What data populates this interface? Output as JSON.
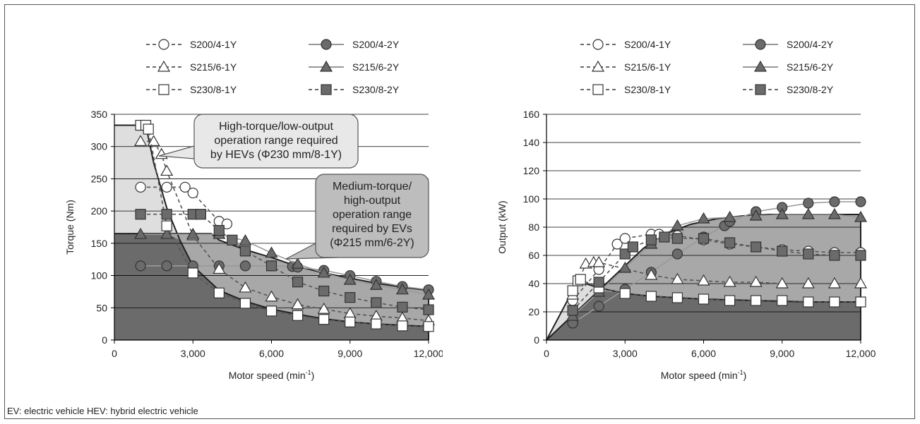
{
  "footnote": "EV: electric vehicle   HEV: hybrid electric vehicle",
  "colors": {
    "dark": "#6b6b6b",
    "medium": "#a8a8a8",
    "light": "#dedede",
    "grid": "#000000",
    "callout": "#e8e8e8",
    "callout2": "#bdbdbd"
  },
  "chart_data": [
    {
      "type": "line",
      "xlabel": "Motor speed (min",
      "xlabel_sup": "-1",
      "xlabel_end": ")",
      "ylabel": "Torque (Nm)",
      "xlim": [
        0,
        12000
      ],
      "ylim": [
        0,
        350
      ],
      "xticks": [
        0,
        3000,
        6000,
        9000,
        12000
      ],
      "xtick_labels": [
        "0",
        "3,000",
        "6,000",
        "9,000",
        "12,000"
      ],
      "yticks": [
        0,
        50,
        100,
        150,
        200,
        250,
        300,
        350
      ],
      "ytick_labels": [
        "0",
        "50",
        "100",
        "150",
        "200",
        "250",
        "300",
        "350"
      ],
      "grid": "horizontal",
      "legend": [
        "S200/4-1Y",
        "S200/4-2Y",
        "S215/6-1Y",
        "S215/6-2Y",
        "S230/8-1Y",
        "S230/8-2Y"
      ],
      "callouts": [
        {
          "lines": [
            "High-torque/low-output",
            "operation range required",
            "by HEVs (Φ230 mm/8-1Y)"
          ]
        },
        {
          "lines": [
            "Medium-torque/",
            "high-output",
            "operation range",
            "required by EVs",
            "(Φ215 mm/6-2Y)"
          ]
        }
      ],
      "regions": [
        {
          "name": "HEV operation range",
          "x": [
            0,
            1200,
            1500,
            2000,
            2500,
            3000,
            4000,
            5000,
            6000,
            7000,
            8000,
            9000,
            10000,
            11000,
            12000
          ],
          "y": [
            333,
            333,
            275,
            205,
            155,
            115,
            77,
            60,
            48,
            40,
            33,
            28,
            25,
            23,
            21
          ]
        },
        {
          "name": "EV operation range",
          "x": [
            0,
            3700,
            4000,
            5000,
            6000,
            7000,
            8000,
            9000,
            10000,
            11000,
            12000
          ],
          "y": [
            165,
            165,
            155,
            140,
            128,
            114,
            104,
            96,
            88,
            82,
            77
          ]
        }
      ],
      "series": [
        {
          "name": "S200/4-1Y",
          "marker": "circle",
          "fill": "white",
          "dash": true,
          "x": [
            1000,
            2000,
            2700,
            3000,
            4000,
            4300
          ],
          "y": [
            237,
            237,
            237,
            228,
            184,
            180
          ]
        },
        {
          "name": "S200/4-2Y",
          "marker": "circle",
          "fill": "dark",
          "dash": false,
          "x": [
            1000,
            2000,
            3000,
            4000,
            5000,
            6000,
            6800,
            7000,
            8000,
            9000,
            10000,
            11000,
            12000
          ],
          "y": [
            115,
            115,
            115,
            115,
            115,
            115,
            114,
            113,
            108,
            100,
            91,
            83,
            78
          ]
        },
        {
          "name": "S215/6-1Y",
          "marker": "triangle",
          "fill": "white",
          "dash": true,
          "x": [
            1000,
            1500,
            1800,
            2000,
            3000,
            4000,
            5000,
            6000,
            7000,
            8000,
            9000,
            10000,
            11000,
            12000
          ],
          "y": [
            308,
            308,
            288,
            262,
            162,
            110,
            81,
            67,
            55,
            48,
            41,
            37,
            34,
            30
          ]
        },
        {
          "name": "S215/6-2Y",
          "marker": "triangle",
          "fill": "dark",
          "dash": false,
          "x": [
            1000,
            2000,
            3000,
            4000,
            5000,
            6000,
            7000,
            8000,
            9000,
            10000,
            11000,
            12000
          ],
          "y": [
            164,
            164,
            164,
            164,
            154,
            135,
            118,
            104,
            93,
            85,
            78,
            70
          ]
        },
        {
          "name": "S230/8-1Y",
          "marker": "square",
          "fill": "white",
          "dash": true,
          "x": [
            1000,
            1200,
            1300,
            2000,
            3000,
            4000,
            5000,
            6000,
            7000,
            8000,
            9000,
            10000,
            11000,
            12000
          ],
          "y": [
            333,
            333,
            327,
            177,
            104,
            73,
            57,
            45,
            38,
            32,
            28,
            25,
            22,
            21
          ]
        },
        {
          "name": "S230/8-2Y",
          "marker": "square",
          "fill": "dark",
          "dash": true,
          "x": [
            1000,
            2000,
            3000,
            3300,
            4000,
            4500,
            5000,
            6000,
            7000,
            8000,
            9000,
            10000,
            11000,
            12000
          ],
          "y": [
            195,
            195,
            195,
            195,
            170,
            155,
            138,
            115,
            90,
            76,
            66,
            58,
            51,
            47
          ]
        }
      ]
    },
    {
      "type": "line",
      "xlabel": "Motor speed (min",
      "xlabel_sup": "-1",
      "xlabel_end": ")",
      "ylabel": "Output (kW)",
      "xlim": [
        0,
        12000
      ],
      "ylim": [
        0,
        160
      ],
      "xticks": [
        0,
        3000,
        6000,
        9000,
        12000
      ],
      "xtick_labels": [
        "0",
        "3,000",
        "6,000",
        "9,000",
        "12,000"
      ],
      "yticks": [
        0,
        20,
        40,
        60,
        80,
        100,
        120,
        140,
        160
      ],
      "ytick_labels": [
        "0",
        "20",
        "40",
        "60",
        "80",
        "100",
        "120",
        "140",
        "160"
      ],
      "grid": "horizontal",
      "legend": [
        "S200/4-1Y",
        "S200/4-2Y",
        "S215/6-1Y",
        "S215/6-2Y",
        "S230/8-1Y",
        "S230/8-2Y"
      ],
      "regions": [
        {
          "name": "HEV operation range",
          "x": [
            0,
            1200,
            1500,
            2000,
            3000,
            4000,
            5000,
            6000,
            7000,
            8000,
            9000,
            10000,
            11000,
            12000
          ],
          "y": [
            0,
            42,
            40,
            37,
            33,
            31,
            30,
            29,
            28.5,
            28,
            27.5,
            27,
            27,
            27
          ]
        },
        {
          "name": "EV operation range",
          "x": [
            0,
            3700,
            4500,
            5500,
            6500,
            7500,
            8500,
            9500,
            10500,
            11500,
            12000
          ],
          "y": [
            0,
            65,
            75,
            82,
            86,
            88,
            89,
            89,
            89,
            89,
            89
          ]
        }
      ],
      "series": [
        {
          "name": "S200/4-1Y",
          "marker": "circle",
          "fill": "white",
          "dash": true,
          "x": [
            1000,
            2000,
            2700,
            3000,
            4000,
            4300,
            5000,
            6000,
            7000,
            8000,
            9000,
            10000,
            11000,
            12000
          ],
          "y": [
            28,
            50,
            68,
            72,
            75,
            75,
            74,
            71,
            68,
            66,
            64,
            63,
            62,
            62
          ]
        },
        {
          "name": "S200/4-2Y",
          "marker": "circle",
          "fill": "dark",
          "dash": false,
          "x": [
            1000,
            2000,
            3000,
            4000,
            5000,
            6000,
            6800,
            7000,
            8000,
            9000,
            10000,
            11000,
            12000
          ],
          "y": [
            12,
            24,
            36,
            48,
            61,
            73,
            81,
            84,
            91,
            94,
            97,
            98,
            98
          ]
        },
        {
          "name": "S215/6-1Y",
          "marker": "triangle",
          "fill": "white",
          "dash": true,
          "x": [
            1000,
            1500,
            1800,
            2000,
            4000,
            5000,
            6000,
            7000,
            8000,
            9000,
            10000,
            11000,
            12000
          ],
          "y": [
            32,
            54,
            55,
            55,
            46,
            43,
            42,
            41,
            41,
            40,
            40,
            40,
            40
          ]
        },
        {
          "name": "S215/6-2Y",
          "marker": "triangle",
          "fill": "dark",
          "dash": false,
          "x": [
            1000,
            2000,
            3000,
            4000,
            5000,
            6000,
            7000,
            8000,
            9000,
            10000,
            11000,
            12000
          ],
          "y": [
            17,
            34,
            51,
            68,
            81,
            86,
            87,
            88,
            89,
            89,
            89,
            87
          ]
        },
        {
          "name": "S230/8-1Y",
          "marker": "square",
          "fill": "white",
          "dash": true,
          "x": [
            1000,
            1200,
            1300,
            2000,
            3000,
            4000,
            5000,
            6000,
            7000,
            8000,
            9000,
            10000,
            11000,
            12000
          ],
          "y": [
            35,
            42,
            43,
            37,
            33,
            31,
            30,
            29,
            28,
            28,
            28,
            27,
            27,
            27
          ]
        },
        {
          "name": "S230/8-2Y",
          "marker": "square",
          "fill": "dark",
          "dash": true,
          "x": [
            1000,
            2000,
            3000,
            3300,
            4000,
            4500,
            5000,
            6000,
            7000,
            8000,
            9000,
            10000,
            11000,
            12000
          ],
          "y": [
            21,
            41,
            61,
            66,
            71,
            73,
            72,
            72,
            69,
            66,
            63,
            61,
            60,
            60
          ]
        }
      ]
    }
  ]
}
